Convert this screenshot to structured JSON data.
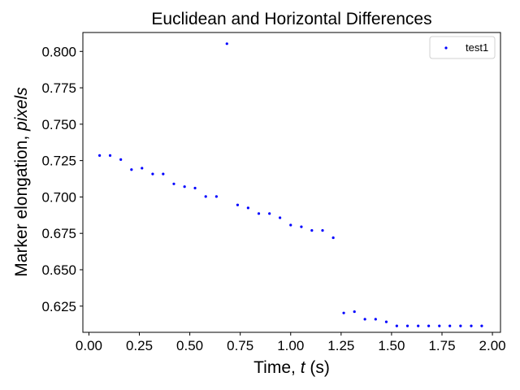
{
  "chart_data": {
    "type": "scatter",
    "title": "Euclidean and Horizontal Differences",
    "xlabel": {
      "prefix": "Time, ",
      "var": "t",
      "suffix": " (s)"
    },
    "ylabel": {
      "prefix": "Marker elongation, ",
      "var": "pixels"
    },
    "xlim": [
      -0.03,
      2.04
    ],
    "ylim": [
      0.607,
      0.813
    ],
    "xticks": [
      0.0,
      0.25,
      0.5,
      0.75,
      1.0,
      1.25,
      1.5,
      1.75,
      2.0
    ],
    "xtick_labels": [
      "0.00",
      "0.25",
      "0.50",
      "0.75",
      "1.00",
      "1.25",
      "1.50",
      "1.75",
      "2.00"
    ],
    "yticks": [
      0.625,
      0.65,
      0.675,
      0.7,
      0.725,
      0.75,
      0.775,
      0.8
    ],
    "ytick_labels": [
      "0.625",
      "0.650",
      "0.675",
      "0.700",
      "0.725",
      "0.750",
      "0.775",
      "0.800"
    ],
    "grid": false,
    "legend_position": "top-right",
    "series": [
      {
        "name": "test1",
        "color": "#0000ff",
        "marker": "dot",
        "points": [
          [
            0.053,
            0.7285
          ],
          [
            0.105,
            0.7285
          ],
          [
            0.158,
            0.7257
          ],
          [
            0.211,
            0.7188
          ],
          [
            0.263,
            0.7198
          ],
          [
            0.316,
            0.7158
          ],
          [
            0.368,
            0.7158
          ],
          [
            0.421,
            0.709
          ],
          [
            0.474,
            0.7071
          ],
          [
            0.526,
            0.7061
          ],
          [
            0.579,
            0.7003
          ],
          [
            0.632,
            0.7003
          ],
          [
            0.684,
            0.8053
          ],
          [
            0.737,
            0.6945
          ],
          [
            0.789,
            0.6925
          ],
          [
            0.842,
            0.6886
          ],
          [
            0.895,
            0.6886
          ],
          [
            0.947,
            0.6857
          ],
          [
            1.0,
            0.6807
          ],
          [
            1.053,
            0.6795
          ],
          [
            1.105,
            0.677
          ],
          [
            1.158,
            0.677
          ],
          [
            1.211,
            0.672
          ],
          [
            1.263,
            0.6203
          ],
          [
            1.316,
            0.6212
          ],
          [
            1.368,
            0.616
          ],
          [
            1.421,
            0.616
          ],
          [
            1.474,
            0.6142
          ],
          [
            1.526,
            0.6114
          ],
          [
            1.579,
            0.6114
          ],
          [
            1.632,
            0.6114
          ],
          [
            1.684,
            0.6114
          ],
          [
            1.737,
            0.6114
          ],
          [
            1.789,
            0.6114
          ],
          [
            1.842,
            0.6114
          ],
          [
            1.895,
            0.6114
          ],
          [
            1.947,
            0.6114
          ]
        ]
      }
    ]
  }
}
